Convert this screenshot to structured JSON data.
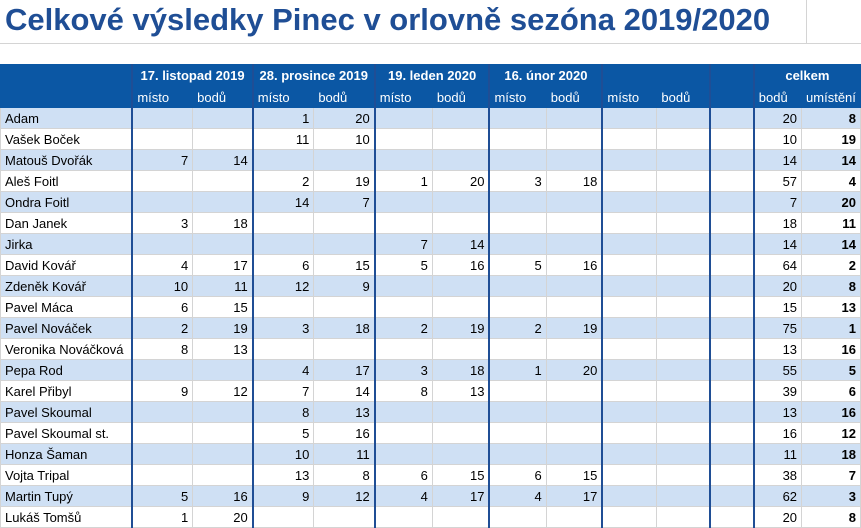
{
  "title": "Celkové výsledky Pinec v orlovně sezóna 2019/2020",
  "rounds": [
    "17. listopad 2019",
    "28. prosince 2019",
    "19. leden 2020",
    "16. únor 2020",
    ""
  ],
  "total_header": "celkem",
  "sub_headers": {
    "misto": "místo",
    "body": "bodů",
    "umisteni": "umístění"
  },
  "rows": [
    {
      "name": "Adam",
      "r": [
        [
          "",
          ""
        ],
        [
          "1",
          "20"
        ],
        [
          "",
          ""
        ],
        [
          "",
          ""
        ],
        [
          "",
          ""
        ]
      ],
      "total": "20",
      "rank": "8"
    },
    {
      "name": "Vašek Boček",
      "r": [
        [
          "",
          ""
        ],
        [
          "11",
          "10"
        ],
        [
          "",
          ""
        ],
        [
          "",
          ""
        ],
        [
          "",
          ""
        ]
      ],
      "total": "10",
      "rank": "19"
    },
    {
      "name": "Matouš Dvořák",
      "r": [
        [
          "7",
          "14"
        ],
        [
          "",
          ""
        ],
        [
          "",
          ""
        ],
        [
          "",
          ""
        ],
        [
          "",
          ""
        ]
      ],
      "total": "14",
      "rank": "14"
    },
    {
      "name": "Aleš Foitl",
      "r": [
        [
          "",
          ""
        ],
        [
          "2",
          "19"
        ],
        [
          "1",
          "20"
        ],
        [
          "3",
          "18"
        ],
        [
          "",
          ""
        ]
      ],
      "total": "57",
      "rank": "4"
    },
    {
      "name": "Ondra Foitl",
      "r": [
        [
          "",
          ""
        ],
        [
          "14",
          "7"
        ],
        [
          "",
          ""
        ],
        [
          "",
          ""
        ],
        [
          "",
          ""
        ]
      ],
      "total": "7",
      "rank": "20"
    },
    {
      "name": "Dan Janek",
      "r": [
        [
          "3",
          "18"
        ],
        [
          "",
          ""
        ],
        [
          "",
          ""
        ],
        [
          "",
          ""
        ],
        [
          "",
          ""
        ]
      ],
      "total": "18",
      "rank": "11"
    },
    {
      "name": "Jirka",
      "r": [
        [
          "",
          ""
        ],
        [
          "",
          ""
        ],
        [
          "7",
          "14"
        ],
        [
          "",
          ""
        ],
        [
          "",
          ""
        ]
      ],
      "total": "14",
      "rank": "14"
    },
    {
      "name": "David Kovář",
      "r": [
        [
          "4",
          "17"
        ],
        [
          "6",
          "15"
        ],
        [
          "5",
          "16"
        ],
        [
          "5",
          "16"
        ],
        [
          "",
          ""
        ]
      ],
      "total": "64",
      "rank": "2"
    },
    {
      "name": "Zdeněk Kovář",
      "r": [
        [
          "10",
          "11"
        ],
        [
          "12",
          "9"
        ],
        [
          "",
          ""
        ],
        [
          "",
          ""
        ],
        [
          "",
          ""
        ]
      ],
      "total": "20",
      "rank": "8"
    },
    {
      "name": "Pavel Máca",
      "r": [
        [
          "6",
          "15"
        ],
        [
          "",
          ""
        ],
        [
          "",
          ""
        ],
        [
          "",
          ""
        ],
        [
          "",
          ""
        ]
      ],
      "total": "15",
      "rank": "13"
    },
    {
      "name": "Pavel Nováček",
      "r": [
        [
          "2",
          "19"
        ],
        [
          "3",
          "18"
        ],
        [
          "2",
          "19"
        ],
        [
          "2",
          "19"
        ],
        [
          "",
          ""
        ]
      ],
      "total": "75",
      "rank": "1"
    },
    {
      "name": "Veronika Nováčková",
      "r": [
        [
          "8",
          "13"
        ],
        [
          "",
          ""
        ],
        [
          "",
          ""
        ],
        [
          "",
          ""
        ],
        [
          "",
          ""
        ]
      ],
      "total": "13",
      "rank": "16"
    },
    {
      "name": "Pepa Rod",
      "r": [
        [
          "",
          ""
        ],
        [
          "4",
          "17"
        ],
        [
          "3",
          "18"
        ],
        [
          "1",
          "20"
        ],
        [
          "",
          ""
        ]
      ],
      "total": "55",
      "rank": "5"
    },
    {
      "name": "Karel Přibyl",
      "r": [
        [
          "9",
          "12"
        ],
        [
          "7",
          "14"
        ],
        [
          "8",
          "13"
        ],
        [
          "",
          ""
        ],
        [
          "",
          ""
        ]
      ],
      "total": "39",
      "rank": "6"
    },
    {
      "name": "Pavel Skoumal",
      "r": [
        [
          "",
          ""
        ],
        [
          "8",
          "13"
        ],
        [
          "",
          ""
        ],
        [
          "",
          ""
        ],
        [
          "",
          ""
        ]
      ],
      "total": "13",
      "rank": "16"
    },
    {
      "name": "Pavel Skoumal st.",
      "r": [
        [
          "",
          ""
        ],
        [
          "5",
          "16"
        ],
        [
          "",
          ""
        ],
        [
          "",
          ""
        ],
        [
          "",
          ""
        ]
      ],
      "total": "16",
      "rank": "12"
    },
    {
      "name": "Honza Šaman",
      "r": [
        [
          "",
          ""
        ],
        [
          "10",
          "11"
        ],
        [
          "",
          ""
        ],
        [
          "",
          ""
        ],
        [
          "",
          ""
        ]
      ],
      "total": "11",
      "rank": "18"
    },
    {
      "name": "Vojta Tripal",
      "r": [
        [
          "",
          ""
        ],
        [
          "13",
          "8"
        ],
        [
          "6",
          "15"
        ],
        [
          "6",
          "15"
        ],
        [
          "",
          ""
        ]
      ],
      "total": "38",
      "rank": "7"
    },
    {
      "name": "Martin Tupý",
      "r": [
        [
          "5",
          "16"
        ],
        [
          "9",
          "12"
        ],
        [
          "4",
          "17"
        ],
        [
          "4",
          "17"
        ],
        [
          "",
          ""
        ]
      ],
      "total": "62",
      "rank": "3"
    },
    {
      "name": "Lukáš Tomšů",
      "r": [
        [
          "1",
          "20"
        ],
        [
          "",
          ""
        ],
        [
          "",
          ""
        ],
        [
          "",
          ""
        ],
        [
          "",
          ""
        ]
      ],
      "total": "20",
      "rank": "8"
    }
  ]
}
